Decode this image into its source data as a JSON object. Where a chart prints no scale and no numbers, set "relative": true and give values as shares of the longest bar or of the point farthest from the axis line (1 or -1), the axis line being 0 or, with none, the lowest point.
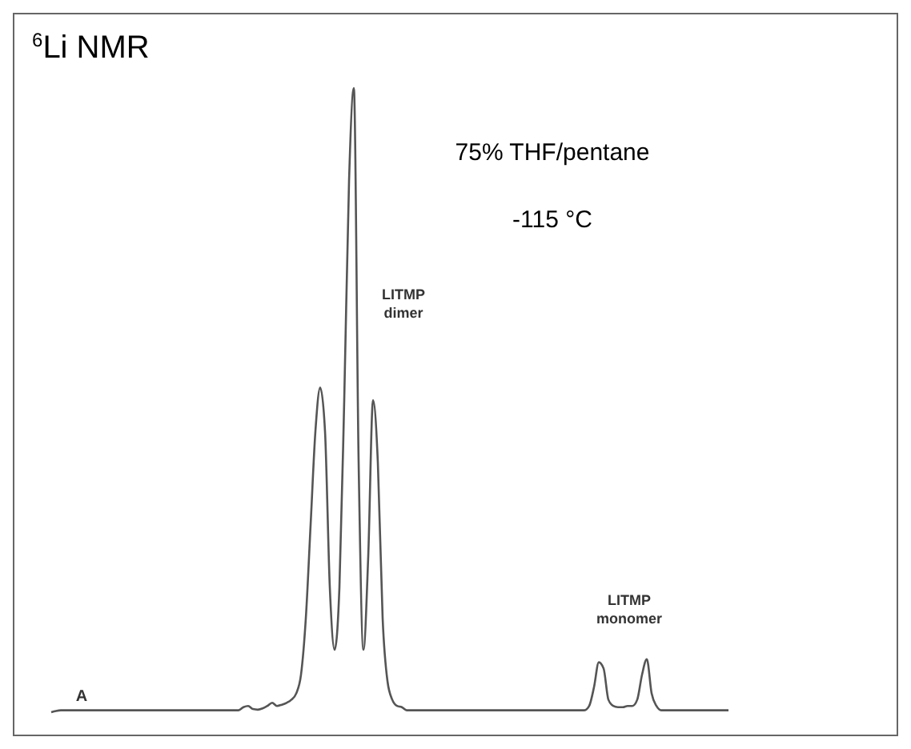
{
  "chart_data": {
    "type": "line",
    "title": "$^{6}$Li NMR",
    "relative": true,
    "line_style": "solid",
    "annotations": [
      "75% THF/pentane",
      "-115 °C",
      "LITMP dimer",
      "LITMP monomer",
      "A"
    ],
    "categories": [
      null,
      null,
      null,
      null,
      null,
      null,
      null,
      null,
      null,
      null,
      null,
      null,
      null,
      null,
      null,
      null,
      null,
      null,
      null,
      null,
      null,
      null,
      null,
      null,
      null,
      null,
      null,
      null,
      null,
      null,
      null,
      null,
      null,
      null,
      null,
      null,
      null,
      null,
      null,
      null,
      null,
      null,
      null,
      null,
      null,
      null,
      null,
      null,
      null,
      null,
      null,
      null,
      null,
      null,
      null,
      null,
      null,
      null,
      null,
      null,
      null,
      null,
      null,
      null,
      null,
      null,
      null,
      null,
      null,
      null,
      null,
      null,
      null,
      null,
      null,
      null,
      null,
      null,
      null,
      null,
      null,
      null,
      null,
      null,
      null,
      null,
      null,
      null,
      null,
      null,
      null,
      null,
      null,
      null,
      null,
      null,
      null,
      null,
      null,
      null,
      null,
      null,
      null,
      null,
      null,
      null,
      null,
      null,
      null,
      null,
      null,
      null,
      null,
      null,
      null,
      null,
      null,
      null,
      null,
      null,
      null,
      null,
      null,
      null,
      null,
      null,
      null,
      null,
      null,
      null,
      null,
      null,
      null,
      null,
      null,
      null,
      null,
      null,
      null,
      null,
      null,
      null
    ],
    "series": [
      {
        "color": "#555555",
        "values": [
          0,
          0.002,
          0.003,
          0.003,
          0.003,
          0.003,
          0.003,
          0.003,
          0.003,
          0.003,
          0.003,
          0.003,
          0.003,
          0.003,
          0.003,
          0.003,
          0.003,
          0.003,
          0.003,
          0.003,
          0.003,
          0.003,
          0.003,
          0.003,
          0.003,
          0.003,
          0.003,
          0.003,
          0.003,
          0.003,
          0.003,
          0.003,
          0.003,
          0.003,
          0.003,
          0.003,
          0.003,
          0.003,
          0.003,
          0.003,
          0.008,
          0.01,
          0.005,
          0.004,
          0.006,
          0.01,
          0.015,
          0.01,
          0.012,
          0.015,
          0.02,
          0.03,
          0.06,
          0.15,
          0.3,
          0.45,
          0.52,
          0.45,
          0.2,
          0.1,
          0.2,
          0.5,
          0.85,
          1,
          0.4,
          0.1,
          0.25,
          0.5,
          0.4,
          0.15,
          0.05,
          0.02,
          0.01,
          0.008,
          0.003,
          0.003,
          0.003,
          0.003,
          0.003,
          0.003,
          0.003,
          0.003,
          0.003,
          0.003,
          0.003,
          0.003,
          0.003,
          0.003,
          0.003,
          0.003,
          0.003,
          0.003,
          0.003,
          0.003,
          0.003,
          0.003,
          0.003,
          0.003,
          0.003,
          0.003,
          0.003,
          0.003,
          0.003,
          0.003,
          0.003,
          0.003,
          0.003,
          0.003,
          0.003,
          0.003,
          0.003,
          0.003,
          0.01,
          0.04,
          0.08,
          0.07,
          0.02,
          0.01,
          0.008,
          0.008,
          0.01,
          0.01,
          0.02,
          0.06,
          0.085,
          0.03,
          0.01,
          0.003,
          0.003,
          0.003,
          0.003,
          0.003,
          0.003,
          0.003,
          0.003,
          0.003,
          0.003,
          0.003,
          0.003,
          0.003,
          0.003,
          0.003
        ]
      }
    ]
  }
}
